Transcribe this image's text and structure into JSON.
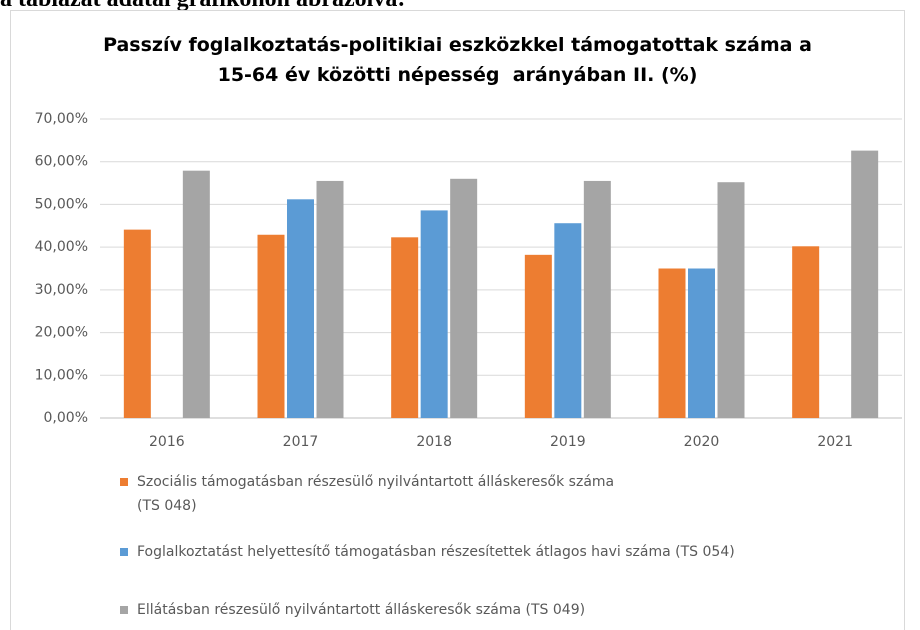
{
  "caption": "a táblázat adatai grafikonon ábrázolva:",
  "chart_data": {
    "type": "bar",
    "title": "Passzív foglalkoztatás-politikiai eszközkkel támogatottak száma a\n15-64 év közötti népesség  arányában II. (%)",
    "categories": [
      "2016",
      "2017",
      "2018",
      "2019",
      "2020",
      "2021"
    ],
    "series": [
      {
        "name": "Szociális támogatásban részesülő nyilvántartott álláskeresők száma\n(TS 048)",
        "color": "#ed7d31",
        "values": [
          44.1,
          42.9,
          42.3,
          38.2,
          35.0,
          40.2
        ]
      },
      {
        "name": "Foglalkoztatást helyettesítő támogatásban részesítettek átlagos havi száma (TS 054)",
        "color": "#5b9bd5",
        "values": [
          null,
          51.2,
          48.6,
          45.6,
          35.0,
          null
        ]
      },
      {
        "name": "Ellátásban részesülő nyilvántartott álláskeresők száma (TS 049)",
        "color": "#a5a5a5",
        "values": [
          57.9,
          55.5,
          56.0,
          55.5,
          55.2,
          62.6
        ]
      }
    ],
    "ylim": [
      0,
      70
    ],
    "yticks": [
      {
        "value": 0,
        "label": "0,00%"
      },
      {
        "value": 10,
        "label": "10,00%"
      },
      {
        "value": 20,
        "label": "20,00%"
      },
      {
        "value": 30,
        "label": "30,00%"
      },
      {
        "value": 40,
        "label": "40,00%"
      },
      {
        "value": 50,
        "label": "50,00%"
      },
      {
        "value": 60,
        "label": "60,00%"
      },
      {
        "value": 70,
        "label": "70,00%"
      }
    ],
    "grid": true
  }
}
